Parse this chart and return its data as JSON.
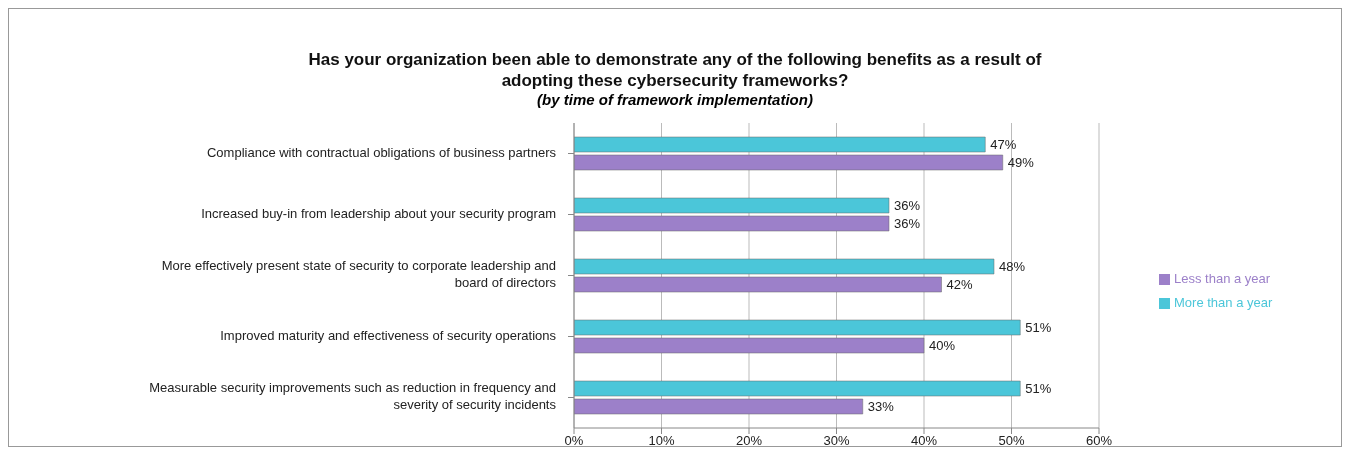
{
  "chart_data": {
    "type": "bar",
    "orientation": "horizontal",
    "title": "Has your organization been able to demonstrate any of the following benefits as a result of adopting these cybersecurity frameworks?",
    "subtitle": "(by time of framework implementation)",
    "categories": [
      "Compliance with contractual obligations of business partners",
      "Increased buy-in from leadership about your security program",
      "More effectively present state of security to corporate leadership and board of directors",
      "Improved maturity and effectiveness of security operations",
      "Measurable security improvements such as reduction in frequency and severity of security incidents"
    ],
    "series": [
      {
        "name": "More than a year",
        "color": "#4bc6d9",
        "values": [
          47,
          36,
          48,
          51,
          51
        ],
        "value_labels": [
          "47%",
          "36%",
          "48%",
          "51%",
          "51%"
        ]
      },
      {
        "name": "Less than a year",
        "color": "#9c80c9",
        "values": [
          49,
          36,
          42,
          40,
          33
        ],
        "value_labels": [
          "49%",
          "36%",
          "42%",
          "40%",
          "33%"
        ]
      }
    ],
    "xlim": [
      0,
      60
    ],
    "xticks": [
      {
        "value": 0,
        "label": "0%"
      },
      {
        "value": 10,
        "label": "10%"
      },
      {
        "value": 20,
        "label": "20%"
      },
      {
        "value": 30,
        "label": "30%"
      },
      {
        "value": 40,
        "label": "40%"
      },
      {
        "value": 50,
        "label": "50%"
      },
      {
        "value": 60,
        "label": "60%"
      }
    ],
    "grid": "x",
    "legend": "right"
  }
}
